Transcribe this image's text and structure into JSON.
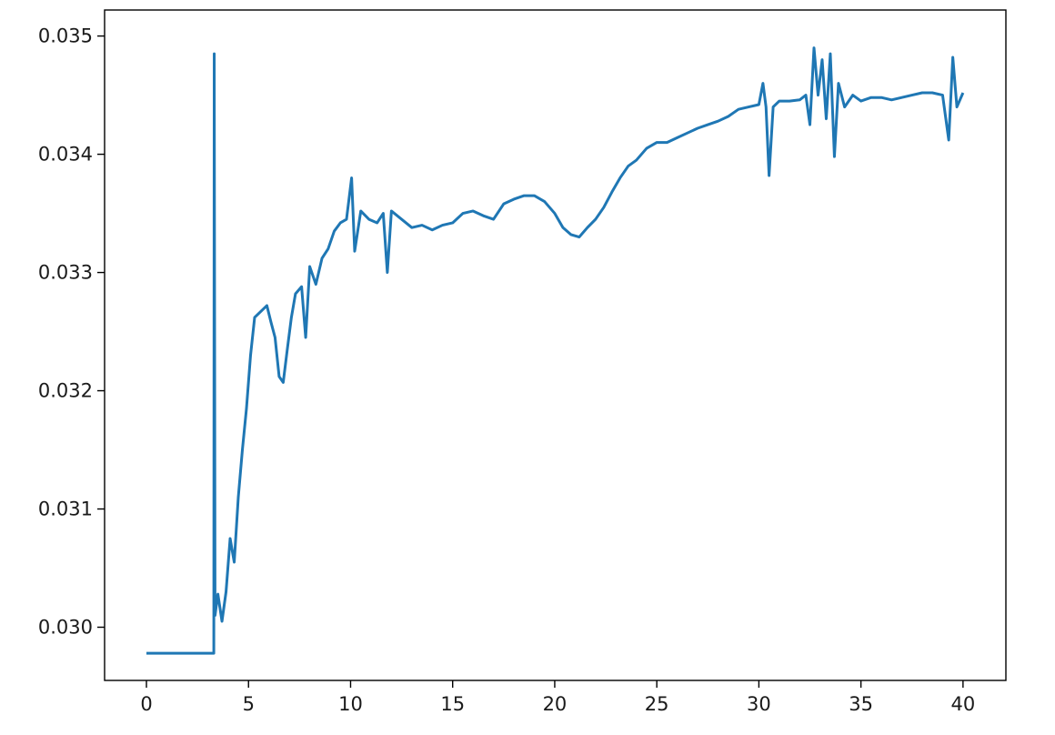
{
  "chart_data": {
    "type": "line",
    "title": "",
    "xlabel": "",
    "ylabel": "",
    "xlim": [
      -2.05,
      42.1
    ],
    "ylim": [
      0.02955,
      0.03522
    ],
    "grid": false,
    "legend": "none",
    "x_ticks": [
      0,
      5,
      10,
      15,
      20,
      25,
      30,
      35,
      40
    ],
    "y_ticks": [
      0.03,
      0.031,
      0.032,
      0.033,
      0.034,
      0.035
    ],
    "x_tick_labels": [
      "0",
      "5",
      "10",
      "15",
      "20",
      "25",
      "30",
      "35",
      "40"
    ],
    "y_tick_labels": [
      "0.030",
      "0.031",
      "0.032",
      "0.033",
      "0.034",
      "0.035"
    ],
    "series": [
      {
        "color": "#1f77b4",
        "points": [
          [
            0.0,
            0.02978
          ],
          [
            3.3,
            0.02978
          ],
          [
            3.32,
            0.03485
          ],
          [
            3.36,
            0.0301
          ],
          [
            3.5,
            0.03028
          ],
          [
            3.7,
            0.03005
          ],
          [
            3.9,
            0.0303
          ],
          [
            4.1,
            0.03075
          ],
          [
            4.3,
            0.03055
          ],
          [
            4.5,
            0.0311
          ],
          [
            4.7,
            0.0315
          ],
          [
            4.9,
            0.03185
          ],
          [
            5.1,
            0.0323
          ],
          [
            5.3,
            0.03262
          ],
          [
            5.6,
            0.03267
          ],
          [
            5.9,
            0.03272
          ],
          [
            6.1,
            0.03258
          ],
          [
            6.3,
            0.03245
          ],
          [
            6.5,
            0.03212
          ],
          [
            6.7,
            0.03207
          ],
          [
            6.9,
            0.03235
          ],
          [
            7.1,
            0.03262
          ],
          [
            7.3,
            0.03282
          ],
          [
            7.6,
            0.03288
          ],
          [
            7.8,
            0.03245
          ],
          [
            8.0,
            0.03305
          ],
          [
            8.3,
            0.0329
          ],
          [
            8.6,
            0.03312
          ],
          [
            8.9,
            0.0332
          ],
          [
            9.2,
            0.03335
          ],
          [
            9.5,
            0.03342
          ],
          [
            9.8,
            0.03345
          ],
          [
            10.05,
            0.0338
          ],
          [
            10.2,
            0.03318
          ],
          [
            10.5,
            0.03352
          ],
          [
            10.9,
            0.03345
          ],
          [
            11.3,
            0.03342
          ],
          [
            11.6,
            0.0335
          ],
          [
            11.8,
            0.033
          ],
          [
            12.0,
            0.03352
          ],
          [
            12.5,
            0.03345
          ],
          [
            13.0,
            0.03338
          ],
          [
            13.5,
            0.0334
          ],
          [
            14.0,
            0.03336
          ],
          [
            14.5,
            0.0334
          ],
          [
            15.0,
            0.03342
          ],
          [
            15.5,
            0.0335
          ],
          [
            16.0,
            0.03352
          ],
          [
            16.5,
            0.03348
          ],
          [
            17.0,
            0.03345
          ],
          [
            17.5,
            0.03358
          ],
          [
            18.0,
            0.03362
          ],
          [
            18.5,
            0.03365
          ],
          [
            19.0,
            0.03365
          ],
          [
            19.5,
            0.0336
          ],
          [
            20.0,
            0.0335
          ],
          [
            20.4,
            0.03338
          ],
          [
            20.8,
            0.03332
          ],
          [
            21.2,
            0.0333
          ],
          [
            21.6,
            0.03338
          ],
          [
            22.0,
            0.03345
          ],
          [
            22.4,
            0.03355
          ],
          [
            22.8,
            0.03368
          ],
          [
            23.2,
            0.0338
          ],
          [
            23.6,
            0.0339
          ],
          [
            24.0,
            0.03395
          ],
          [
            24.5,
            0.03405
          ],
          [
            25.0,
            0.0341
          ],
          [
            25.5,
            0.0341
          ],
          [
            26.0,
            0.03414
          ],
          [
            26.5,
            0.03418
          ],
          [
            27.0,
            0.03422
          ],
          [
            27.5,
            0.03425
          ],
          [
            28.0,
            0.03428
          ],
          [
            28.5,
            0.03432
          ],
          [
            29.0,
            0.03438
          ],
          [
            29.5,
            0.0344
          ],
          [
            30.0,
            0.03442
          ],
          [
            30.2,
            0.0346
          ],
          [
            30.35,
            0.0344
          ],
          [
            30.5,
            0.03382
          ],
          [
            30.7,
            0.0344
          ],
          [
            31.0,
            0.03445
          ],
          [
            31.5,
            0.03445
          ],
          [
            32.0,
            0.03446
          ],
          [
            32.3,
            0.0345
          ],
          [
            32.5,
            0.03425
          ],
          [
            32.7,
            0.0349
          ],
          [
            32.9,
            0.0345
          ],
          [
            33.1,
            0.0348
          ],
          [
            33.3,
            0.0343
          ],
          [
            33.5,
            0.03485
          ],
          [
            33.7,
            0.03398
          ],
          [
            33.9,
            0.0346
          ],
          [
            34.2,
            0.0344
          ],
          [
            34.6,
            0.0345
          ],
          [
            35.0,
            0.03445
          ],
          [
            35.5,
            0.03448
          ],
          [
            36.0,
            0.03448
          ],
          [
            36.5,
            0.03446
          ],
          [
            37.0,
            0.03448
          ],
          [
            37.5,
            0.0345
          ],
          [
            38.0,
            0.03452
          ],
          [
            38.5,
            0.03452
          ],
          [
            39.0,
            0.0345
          ],
          [
            39.3,
            0.03412
          ],
          [
            39.5,
            0.03482
          ],
          [
            39.7,
            0.0344
          ],
          [
            40.0,
            0.03452
          ]
        ]
      }
    ]
  }
}
